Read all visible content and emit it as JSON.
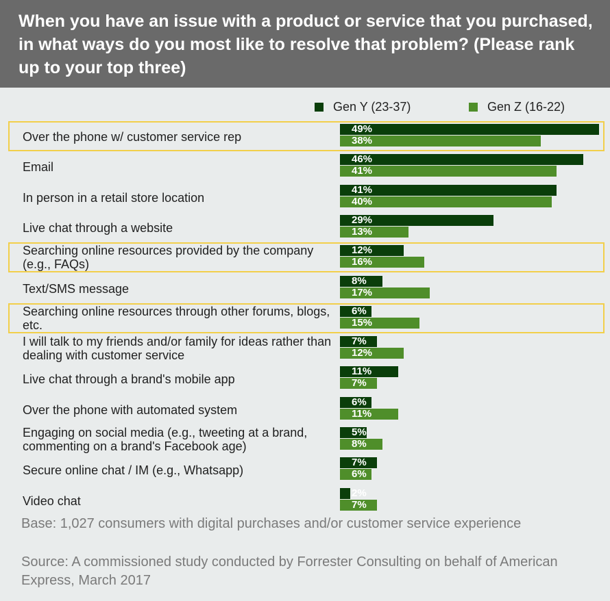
{
  "header": {
    "title": "When you have an issue with a product or service that you purchased, in what ways do you most like to resolve that problem?  (Please rank up to your top three)"
  },
  "colors": {
    "gen_y": "#0a3e0a",
    "gen_z": "#4f8e2a",
    "highlight": "#f2cf4a",
    "header_bg": "#6a6a6a",
    "background": "#e9ecec"
  },
  "chart_data": {
    "type": "bar",
    "orientation": "horizontal",
    "title": "When you have an issue with a product or service that you purchased, in what ways do you most like to resolve that problem?  (Please rank up to your top three)",
    "legend_position": "top-right",
    "grid": false,
    "xlim": [
      0,
      50
    ],
    "categories": [
      "Over the phone w/ customer service rep",
      "Email",
      "In person in a retail store location",
      "Live chat through a website",
      "Searching online resources provided by the company (e.g., FAQs)",
      "Text/SMS message",
      "Searching online resources through other forums, blogs, etc.",
      "I will talk to my friends and/or family for ideas rather than dealing with customer service",
      "Live chat through a brand's mobile app",
      "Over the phone with automated system",
      "Engaging on social media (e.g., tweeting at a brand, commenting on a brand's Facebook age)",
      "Secure online chat / IM (e.g., Whatsapp)",
      "Video chat"
    ],
    "highlighted_categories": [
      0,
      4,
      6
    ],
    "series": [
      {
        "name": "Gen Y (23-37)",
        "values": [
          49,
          46,
          41,
          29,
          12,
          8,
          6,
          7,
          11,
          6,
          5,
          7,
          2
        ],
        "labels": [
          "49%",
          "46%",
          "41%",
          "29%",
          "12%",
          "8%",
          "6%",
          "7%",
          "11%",
          "6%",
          "5%",
          "7%",
          "2%"
        ]
      },
      {
        "name": "Gen Z (16-22)",
        "values": [
          38,
          41,
          40,
          13,
          16,
          17,
          15,
          12,
          7,
          11,
          8,
          6,
          7
        ],
        "labels": [
          "38%",
          "41%",
          "40%",
          "13%",
          "16%",
          "17%",
          "15%",
          "12%",
          "7%",
          "11%",
          "8%",
          "6%",
          "7%"
        ]
      }
    ]
  },
  "footnotes": {
    "base": "Base: 1,027 consumers with digital purchases and/or customer service experience",
    "source": "Source: A commissioned study conducted by Forrester Consulting on behalf of American Express, March 2017"
  }
}
